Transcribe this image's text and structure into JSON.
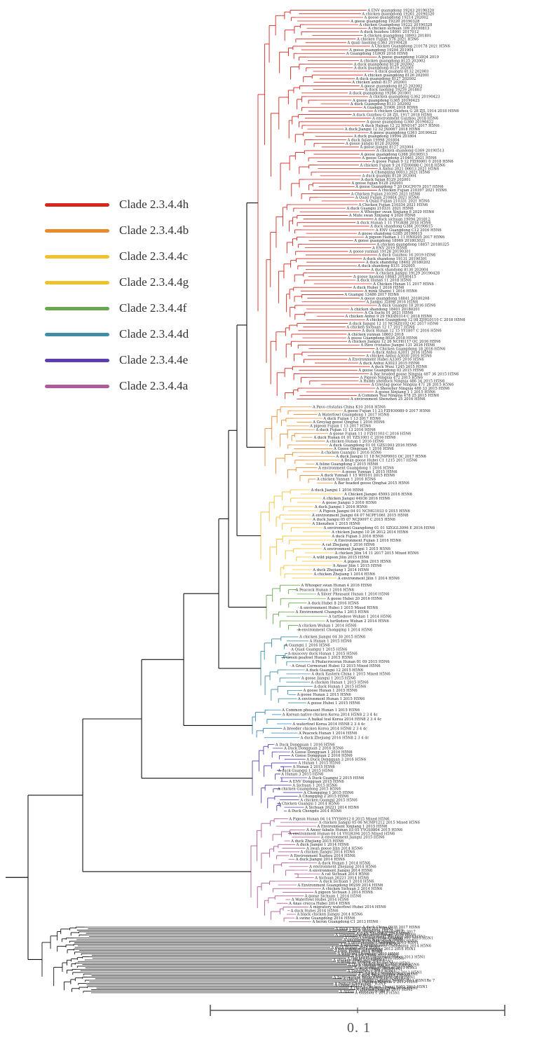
{
  "legend": [
    {
      "label": "Clade 2.3.4.4h",
      "color": "#d7261e"
    },
    {
      "label": "Clade 2.3.4.4b",
      "color": "#e88b2d"
    },
    {
      "label": "Clade 2.3.4.4c",
      "color": "#f2c12e"
    },
    {
      "label": "Clade 2.3.4.4g",
      "color": "#efc22c"
    },
    {
      "label": "Clade 2.3.4.4f",
      "color": "#6aa84f"
    },
    {
      "label": "Clade 2.3.4.4d",
      "color": "#3f8ea6"
    },
    {
      "label": "Clade 2.3.4.4e",
      "color": "#5b3fb0"
    },
    {
      "label": "Clade 2.3.4.4a",
      "color": "#b05a9a"
    }
  ],
  "clades": [
    {
      "id": "h",
      "color": "#d7261e",
      "leaves": [
        "A ENV guangdong 19243 20190320",
        "A chicken guangdong 19261 20190320",
        "A goose guangdong 19214 202002",
        "A goose guangdong 19220 20190328",
        "A chicken Guangdong 19222 20190328",
        "A chicken sichuan 109 20190813",
        "A duck huizhou 18991 2017012",
        "A chicken guangdong 18993 201801",
        "A chicken Fujian Y76 2021 H5N6",
        "A quail liaoning G363 20190428",
        "A Chicken Guangdong 210178 2021 H5N6",
        "A goose guangdong 19204 201904",
        "A Guangdong 1G0Q9 2018 H5N6",
        "A goose guangdong 1G0Q4 2019",
        "A chicken guangdong 8125 202002",
        "A duck guangdong 8128 202002",
        "A duck guangdong 8129 202001",
        "A duck guangxi 8132 202003",
        "A chicken guangdong 8126 202001",
        "A duck guangdong 8127 202002",
        "A chicken anhui 8137 202001",
        "A goose guangdong 8125 202002",
        "A duck liaoning 19259 201803",
        "A duck guangdong 19266 201801",
        "A chicken guangdong G362 20190423",
        "A goose guangdong G365 20190423",
        "A duck Guangdong 8131 202002",
        "A Guangxi 31906 2018 H5N6",
        "A chicken Guizhou G 28 ZJL 1914 2018 H5N6",
        "A duck Guizhou G 28 ZJL 1917 2018 H5N6",
        "A environment Guizhou 2018 H5N6",
        "A goose guangdong G360 20190422",
        "A duck Hainan 12 22 HN0147 2017 H5N6",
        "A duck Jiangxi 12 32 JX0067 2018 H5N6",
        "A goose guangdong G361 20190422",
        "A duck guangdong 19994 201804",
        "A duck fujian 19998 201804",
        "A goose jiangxi 8128 202004",
        "A goose jiangxi 8127 202004",
        "A chicken shandong G369 20190513",
        "A goose guangdong G368 20190513",
        "A goose Guangdong 210461 2021 H5N6",
        "A goose Fujian 9 12 FZH0001 0 2018 H5N6",
        "A chicken Fujian 9 24 FZH0088 C 2018 H5N6",
        "A Anhui 2021 00013 2021 H5N6",
        "A Chongqing 00013 2021 H5N6",
        "A duck guangxi 8128 202004",
        "A duck fujian 8129 202001",
        "A goose fujian 8128 202001",
        "A goose Guangdong 7 20 DGCP079 2017 H5N6",
        "A chicken Fujian 210397 2021 H5N6",
        "A Chicken Fujian 210395 2021 H5N6",
        "A Quail Fujian 210404 2021 H5N6",
        "A Quail Fujian 210331 2021 H5N6",
        "A Chicken Fujian 210334 2021 H5N6",
        "A duck Guangxi 210331 2021 H5N6",
        "A Whooper swan Xinjiang 8 2020 H5N6",
        "A Mute swan Xinjiang 4 2020 H5N6",
        "A duck sichuan 19094 201812",
        "A duck Hunan 1 11 YYGK08 2018 H5N6",
        "A duck shandong G384 20190615",
        "A ENV Guangdong C12 2016 H5N6",
        "A goose shandong G385 20190615",
        "A pigeon Hainan 1 11 HN0205 2017 H5N6",
        "A goose guangdong 18969 201803021",
        "A chicken guangdong 18857 20180325",
        "A ENV 2019 H5N6",
        "A goose yunnan 19128 20190301",
        "A duck Guizhou 16 2019 H5N6",
        "A duck shandong 19131 20190301",
        "A duck shandong 18402 20180202",
        "A duck shandong 8131 202005",
        "A duck shandong 8130 202004",
        "A chicken jiangxi 19129 20190428",
        "A goose liaoning 18683 20180415",
        "A duck Hunan 11 2018 H5N6",
        "A Chicken Hunan 11 2017 H5N6",
        "A duck Hubei 1 2016 H5N6",
        "A mink Shanxi 1 2016 H5N6",
        "A Guangxi 13486 2017 H5N6",
        "A goose guangdong 18841 20180208",
        "A Jiangxi 32898 2016 H5N6",
        "A duck Guangxi 18 2016 H5N6",
        "A chicken shandong 18401 20180201",
        "A Ck Suchi 01 2021 H5N6",
        "A chicken Anhui 9 29 YKDZ0314 C 2018 H5N6",
        "A chicken Guangdong 12 08 ZJHG0110 C 2018 H5N6",
        "A duck Jiangxi 12 31 NCHZ0102 OC 2017 H5N6",
        "A chicken Sichuan 12 17 2017 H5N6",
        "A duck Hunan 12 15 YY1807 C 2016 H5N6",
        "A chicken yunnan 18603 2018",
        "A goose Guangdong 8026 2018 H5N6",
        "A chicken Jiangxi 12 26 NCH0117 OC 2016 H5N6",
        "A Pavo cristatus Jiangxi 131 2016 H5N6",
        "A Chicken Guangdong 18 2016 H5N6",
        "A duck Anhui A3011 2016 H5N6",
        "A chicken Anhui A3030 2016 H5N6",
        "A Environment Hubei A3305 2016 H5N6",
        "A duck Anhui A3023 2015 H5N6",
        "A duck Wuxi 1245 2015 H5N6",
        "A goose Guangdong 03 2015 H5N6",
        "A Bar headed goose Ningxia 487 36 2015 H5N6",
        "A Pigeon Ningxia 472 2015 H5N6",
        "A Ruddy shelduck Ningxia 486 34 2015 H5N6",
        "A Greylag goose Ningxia 471 28 2015 H5N6",
        "A Shoveller Ningxia 488 33 2015 H5N6",
        "A goose Xinjiang 1 1 2015 H5N6",
        "A Common Teal Ningxia 478 25 2015 H5N6",
        "A environment Shenzhen 25 2016 H5N6"
      ]
    },
    {
      "id": "b",
      "color": "#e88b2d",
      "leaves": [
        "A Pavo cristatus China K10 2018 H5N6",
        "A goose Fujian 11 23 FZHO0089 0 2017 H5N6",
        "A Waterfowl Guangdong 1 2017 H5N6",
        "A duck Fujian 1 13 2017 H5N6",
        "A Greylag goose Qinghai 1 2016 H5N6",
        "A pigeon Fujian 1 13 2017 H5N6",
        "A duck Fujian 11 13 2016 H5N6",
        "A goose Fujian 11 3 FZH1103 C 2016 H5N6",
        "A duck Hunan 01 01 YZS1001 C 2016 H5N6",
        "A chicken Hunan 1 2016 H5N6",
        "A duck Guangdong 01 01 GZS1003 2016 H5N6",
        "A Goose Qingyuan 1 2016 H5N6",
        "A chicken Guangxi 1 2016 H5N6",
        "A duck Jiangxi 11 18 NCMP0003 OC 2017 H5N6",
        "A Bean goose Hubei C1 1215 2017 H5N6",
        "A feline Guangdong 2 2015 H5N6",
        "A environment Guangdong 1 2016 H5N6",
        "A goose Yunnan 1 2015 H5N6",
        "A duck Yunnan 1 15 WH101 2015 H5N6",
        "A chicken Yunnan 1 2016 H5N6",
        "A Bar headed goose Qinghai 2015 H5N6"
      ]
    },
    {
      "id": "c",
      "color": "#f2c12e",
      "leaves": [
        "A duck Jiangxi 1 2016 H5N6",
        "A Chicken Jiangxi 45093 2016 H5N6",
        "A chicken Jiangxi 44936 2016 H5N6",
        "A goose Jiangxi 3 2016 H5N6",
        "A duck Jiangxi 1 2016 H5N6",
        "A Pigeon Jiangxi 04 01 NCMG1033 0 2015 H5N6",
        "A environment Jiangxi 04 07 NCPF1061 2015 H5N6",
        "A duck Jiangxi 05 07 NCJ0097 C 2015 H5N6",
        "A Shenzhen 1 2015 H5N6",
        "A environment Guangdong 01 01 SZGGL3096 E 2016 H5N6",
        "A chicken Jiangxi 10 26 2012 2014 H5N6",
        "A duck Fujian 3 2016 H5N6",
        "A Environment Fujian 1 2016 H5N6",
        "A cat Zhejiang 1 2016 H5N6",
        "A environment Jiangxi 1 2015 H5N6",
        "A chicken Jilin 14 11 2017 2015 Mixed H5N6",
        "A wild pigeon Jilin 2015 H5N6",
        "A pigeon Jilin 2015 H5N6",
        "A Anser Jilin 1 2015 H5N6",
        "A duck Zhejiang 1 2014 H5N6",
        "A chicken Zhejiang 1 2014 H5N6",
        "A environment Jilin 1 2014 H5N6"
      ]
    },
    {
      "id": "f",
      "color": "#6aa84f",
      "leaves": [
        "A Whooper swan Hunan 4 2016 H5N6",
        "A Peacock Hunan 1 2016 H5N6",
        "A Silver Pheasant Hunan 1 2016 H5N6",
        "A goose Hubei 20 2016 H5N6",
        "A duck Hubei 8 2016 H5N6",
        "A environment Hubei 1 2015 Mixed H5N6",
        "A Environment Changsha 1 2015 H5N6",
        "A turtledove Wuhan 1 2014 H5N6",
        "A turtledove Wuhan 2 2014 H5N6",
        "A chicken Wuhan 1 2014 H5N6",
        "A environment Chongqing 1 2014 H5N6"
      ]
    },
    {
      "id": "d",
      "color": "#3f8ea6",
      "leaves": [
        "A chicken Jiangxi 04 30 2015 H5N6",
        "A Hunan 1 2015 H5N6",
        "A Guangxi 1 2016 H5N6",
        "A Quail Guangxi 1 2015 H5N6",
        "A muscovy duck Hunan 1 2015 H5N6",
        "A Green peafowl Hunan 1 2015 H5N6",
        "A Phalacrocorax Hunan 01 09 2015 H5N6",
        "A Great Cormorant Hubei 12 2015 Mixed H5N6",
        "A duck Guangxi 12 2015 H5N6",
        "A duck Eastern China 1 2015 Mixed H5N6",
        "A goose Jiangxi 1 2015 H5N6",
        "A chicken Hunan 1 2015 H5N6",
        "A duck Hunan 1 2015 H5N6",
        "A goose Hunan 1 2015 H5N6",
        "A goose Hunan 2 2015 H5N6",
        "A environment Hunan 1 2015 H5N6",
        "A goose Hubei 1 2015 H5N6"
      ]
    },
    {
      "id": "teal",
      "color": "#2e86c1",
      "leaves": [
        "A Common pheasant Hunan 1 2015 H5N6",
        "A Korean native chicken Korea 2014 H5N8 2 3 4 4c",
        "A baikal teal Korea 2014 H5N8 2 3 4 4c",
        "A waterfowl Korea 2014 H5N8 2 3 4 4c",
        "A breeder chicken Korea 2014 H5N8 2 3 4 4c",
        "A Peacock Hunan 1 2014 H5N6",
        "A duck Zhejiang 2014 H5N8 2 3 4 4c"
      ]
    },
    {
      "id": "e",
      "color": "#5b3fb0",
      "leaves": [
        "A Duck Dongguan 1 2016 H5N6",
        "A Duck Dongguan 2 2016 H5N6",
        "A Goose Dongguan 1 2016 H5N6",
        "A Goose Dongguan 2 2016 H5N6",
        "A Duck Dongguan 3 2016 H5N6",
        "A Hunan 1 2015 H5N6",
        "A Hunan 2 2015 H5N6",
        "A duck Guangxi 1 2015 H5N6",
        "A Hunan 3 2015 H5N6",
        "A Duck Guangxi 2 2015 H5N6",
        "A ENV Dongguan 2015 H5N6",
        "A Sichuan 1 2015 H5N6",
        "A chicken Guangdong 2015 H5N6",
        "A Chongqing 1 2015 H5N6",
        "A Chongqing 2 2015 H5N6",
        "A chicken Guangxi 2015 H5N6",
        "A Chicken Guangxi 1 2014 H5N6",
        "A Sichuan 26221 2014 H5N6",
        "A Duck Chengdu 2014 H5N6"
      ]
    },
    {
      "id": "a",
      "color": "#b05a9a",
      "leaves": [
        "A Pigeon Hunan 04 14 YYYS0912 0 2015 Mixed H5N6",
        "A chicken Jiangxi 05 06 NCMP1212 2015 Mixed H5N6",
        "A Environment Xinjiang 1 2015 H5N6",
        "A Anser fabalis Hunan 03 05 YYGS0804 2015 H5N6",
        "A environment Hunan 04 14 YYGR394 2015 Mixed H5N6",
        "A environment Jiangxi 2015 H5N6",
        "A duck Zhejiang 2015 H5N6",
        "A duck Jiangxi 1 2014 H5N6",
        "A swan goose Jilin 2014 H5N6",
        "A chicken Jiangxi 2014 H5N6",
        "A Environment Xuzhou 2014 H5N6",
        "A duck Jiangxi 2014 H5N6",
        "A duck Hunan 1 2014 H5N6",
        "A environment Zhejiang 2014 H5N6",
        "A environment Jiangxi 2014 H5N6",
        "A cat Sichuan 2014 H5N6",
        "A Sichuan 26221 2014 H5N6",
        "A duck Sichuan 1 2014 H5N6",
        "A Environment Guangdong 00299 2014 H5N6",
        "A chicken Sichuan 2 2014 H5N6",
        "A pigeon Sichuan 3 2014 H5N6",
        "A goose Sichuan 1 2014 H5N6",
        "A Waterfowl Hubei 2014 H5N6",
        "A Anas crecca Hubei 2014 H5N6",
        "A migratory waterfowl Hubei 2014 H5N6",
        "A duck Hubei 2014 H5N6",
        "A black chicken Jiangxi 2014 H5N6",
        "A swine Guangdong 2014 H5N6",
        "A heron Guangdong C1 2013 H5N6"
      ]
    },
    {
      "id": "out",
      "color": "#111111",
      "leaves": [
        "A duck China 0938 2017 H5N6",
        "A duck China 0935 2017 H5N1",
        "A duck shandong 19279 2019",
        "A chicken shandong 8132 2017",
        "A duck Shanghai 2013 H5N1",
        "A Streptopelia decaocto Jiangxi 2016 H5N6",
        "A Environment Zhejiang 2014 H5N1",
        "A Great Crested Grebe Qinghai Y01 2015 H5N1",
        "A environment Wuxi 2016 H5N6",
        "A chicken Jiangsu 2013 H5N6",
        "A environment Chongqing 2013 H5N1",
        "A meerkat Shanghai 2013 H5N1",
        "A environment Chongqing 2014 H5N6",
        "A duck Hunan 2015 H5N1",
        "A environment Chongqing 2012 2016 H5N1",
        "A tiger Hubei 2014 H5N6",
        "A lion Hubei 2014 H5N6",
        "A wildfowl Shandong 2015 H5N6",
        "A duck China 2012 H5N1",
        "A Great Cormorant Hubei 2013 H5N1",
        "A chicken Guizhou 2016 H5N6",
        "A chicken Tibet 2013 H5N1",
        "A great tit Fanling 2013 H5N1",
        "A chicken Hubei 2010 H5N1",
        "A Duck Guangdong S1322 2010 H5N6",
        "A chicken Jiangxi 2012 H5N1",
        "A environment Hunan 2013 H5N1",
        "A duck China 2012 H5N1",
        "A Shenzhen 1 2011 H5N1",
        "A duck Guangdong 2013 H5N1",
        "A wild duck Ningxia 2013 H5N1",
        "A duck Zhejiang 2012 H5N1",
        "A barnswallow Hong Kong 1161 2010 H5N1",
        "A chicken Shanxi 2 2006 H5N1Re 4",
        "A chicken Liaoning S4092 2011 H5N1Re 7",
        "A chicken Ningxia 2 2012 H5N1",
        "A human China 2017 H5N1",
        "A China 2017 H5N1",
        "A chicken Shanxi 0302 2012 H5N1",
        "A chicken Eastern China 2016 H5N1",
        "A chicken Dongtai 2011 H5N1",
        "A Anhui 1 2005 H5N1Re 5",
        "A Guizhou 1 2012 H5N1"
      ]
    }
  ],
  "scale_bar": {
    "label": "0. 1"
  }
}
